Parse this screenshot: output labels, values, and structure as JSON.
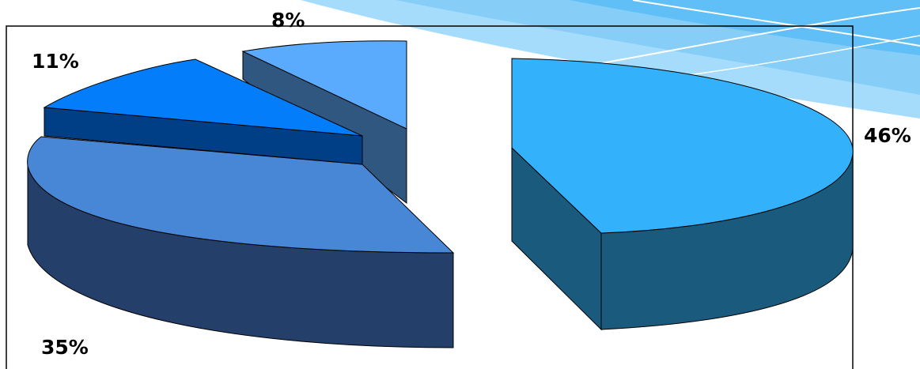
{
  "chart_data": {
    "type": "pie",
    "title": "",
    "three_d": true,
    "exploded": true,
    "legend": "none",
    "slices": [
      {
        "label": "46%",
        "value": 46,
        "color": "#33b2fb",
        "side_color": "#1a5a7d"
      },
      {
        "label": "35%",
        "value": 35,
        "color": "#4886d6",
        "side_color": "#243f69"
      },
      {
        "label": "11%",
        "value": 11,
        "color": "#037df9",
        "side_color": "#003e86"
      },
      {
        "label": "8%",
        "value": 8,
        "color": "#5aaafe",
        "side_color": "#2f5780"
      }
    ]
  }
}
